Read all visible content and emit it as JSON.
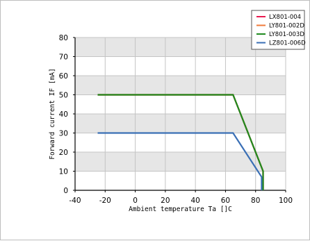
{
  "chart_data": {
    "type": "line",
    "xlabel": "Ambient temperature Ta []C",
    "ylabel": "Forward current IF [mA]",
    "x_ticks": [
      -40,
      -20,
      0,
      20,
      40,
      60,
      80,
      100
    ],
    "y_ticks": [
      0,
      10,
      20,
      30,
      40,
      50,
      60,
      70,
      80
    ],
    "xlim": [
      -40,
      100
    ],
    "ylim": [
      0,
      80
    ],
    "grid": true,
    "band_fill": "#e6e6e6",
    "legend_position": "top-right",
    "series": [
      {
        "name": "LX801-004",
        "color": "#e8194f",
        "x": [
          -25,
          65,
          85,
          85
        ],
        "y": [
          50,
          50,
          10,
          0
        ]
      },
      {
        "name": "LY801-002D",
        "color": "#f07a3a",
        "x": [
          -25,
          65,
          85,
          85
        ],
        "y": [
          50,
          50,
          10,
          0
        ]
      },
      {
        "name": "LY801-003D",
        "color": "#1f8a1f",
        "x": [
          -25,
          65,
          85,
          85
        ],
        "y": [
          50,
          50,
          10,
          0
        ]
      },
      {
        "name": "LZ801-006D",
        "color": "#3a6fb5",
        "x": [
          -25,
          65,
          84,
          84
        ],
        "y": [
          30,
          30,
          7,
          0
        ]
      }
    ]
  }
}
